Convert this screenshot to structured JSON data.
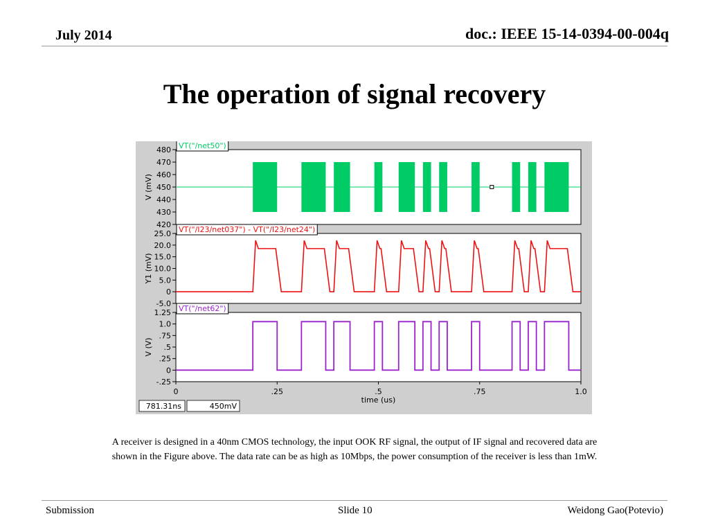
{
  "header": {
    "date": "July  2014",
    "doc": "doc.: IEEE 15-14-0394-00-004q"
  },
  "title": "The operation of signal recovery",
  "caption": "A receiver is designed in a 40nm CMOS technology, the input OOK RF signal, the output of IF signal and recovered data are shown in the Figure above.  The data rate can be as high as 10Mbps, the power consumption of the receiver is less than 1mW.",
  "footer": {
    "left": "Submission",
    "center": "Slide 10",
    "right": "Weidong Gao(Potevio)"
  },
  "colors": {
    "rf": "#00cc66",
    "if": "#ee1111",
    "data": "#9922cc",
    "panel_bg": "#cfcfcf"
  },
  "chart_data": {
    "type": "line",
    "xlabel": "time (us)",
    "xlim": [
      0,
      1.0
    ],
    "x_ticks": [
      "0",
      ".25",
      ".5",
      ".75",
      "1.0"
    ],
    "x_tick_values": [
      0,
      0.25,
      0.5,
      0.75,
      1.0
    ],
    "status": {
      "cursor_time": "781.31ns",
      "cursor_value": "450mV"
    },
    "marker": {
      "x": 0.78,
      "y": 450
    },
    "bursts": [
      [
        0.19,
        0.25
      ],
      [
        0.31,
        0.37
      ],
      [
        0.39,
        0.43
      ],
      [
        0.49,
        0.51
      ],
      [
        0.55,
        0.59
      ],
      [
        0.61,
        0.63
      ],
      [
        0.65,
        0.67
      ],
      [
        0.73,
        0.75
      ],
      [
        0.83,
        0.85
      ],
      [
        0.87,
        0.89
      ],
      [
        0.91,
        0.97
      ]
    ],
    "panels": [
      {
        "legend": "VT(\"/net50\")",
        "ylabel": "V (mV)",
        "ylim": [
          420,
          480
        ],
        "y_ticks": [
          "480",
          "470",
          "460",
          "450",
          "440",
          "430",
          "420"
        ],
        "y_tick_values": [
          480,
          470,
          460,
          450,
          440,
          430,
          420
        ],
        "baseline": 450,
        "burst_low": 430,
        "burst_high": 470
      },
      {
        "legend": "VT(\"/I23/net037\") - VT(\"/I23/net24\")",
        "ylabel": "Y1 (mV)",
        "ylim": [
          -5.0,
          25.0
        ],
        "y_ticks": [
          "25.0",
          "20.0",
          "15.0",
          "10.0",
          "5.0",
          "0",
          "-5.0"
        ],
        "y_tick_values": [
          25.0,
          20.0,
          15.0,
          10.0,
          5.0,
          0,
          -5.0
        ],
        "low": 0,
        "high": 18.5,
        "peak": 22
      },
      {
        "legend": "VT(\"/net62\")",
        "ylabel": "V (V)",
        "ylim": [
          -0.25,
          1.25
        ],
        "y_ticks": [
          "1.25",
          "1.0",
          ".75",
          ".5",
          ".25",
          "0",
          "-.25"
        ],
        "y_tick_values": [
          1.25,
          1.0,
          0.75,
          0.5,
          0.25,
          0,
          -0.25
        ],
        "low": 0,
        "high": 1.05
      }
    ]
  }
}
